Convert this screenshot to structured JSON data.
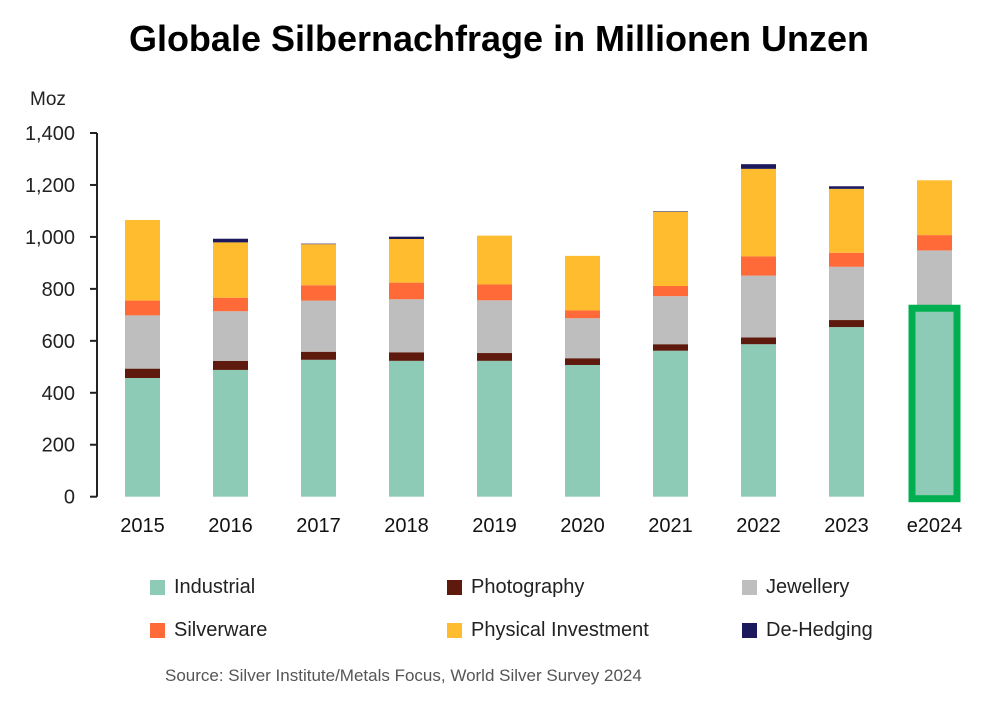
{
  "chart_data": {
    "type": "bar",
    "stacked": true,
    "title": "Globale Silbernachfrage in Millionen Unzen",
    "ylabel": "Moz",
    "ylim": [
      0,
      1400
    ],
    "yticks": [
      "0",
      "200",
      "400",
      "600",
      "800",
      "1,000",
      "1,200",
      "1,400"
    ],
    "ytick_values": [
      0,
      200,
      400,
      600,
      800,
      1000,
      1200,
      1400
    ],
    "grid": false,
    "legend_placement": "bottom",
    "categories": [
      "2015",
      "2016",
      "2017",
      "2018",
      "2019",
      "2020",
      "2021",
      "2022",
      "2023",
      "e2024"
    ],
    "series": [
      {
        "name": "Industrial",
        "color": "#8ECBB7",
        "values": [
          457,
          488,
          527,
          523,
          523,
          507,
          562,
          587,
          653,
          711
        ]
      },
      {
        "name": "Photography",
        "color": "#5E1A0C",
        "values": [
          36,
          35,
          31,
          33,
          30,
          26,
          25,
          26,
          27,
          26
        ]
      },
      {
        "name": "Jewellery",
        "color": "#BEBEBE",
        "values": [
          205,
          191,
          197,
          204,
          203,
          154,
          185,
          238,
          205,
          211
        ]
      },
      {
        "name": "Silverware",
        "color": "#FF6A38",
        "values": [
          57,
          52,
          59,
          64,
          61,
          30,
          39,
          74,
          54,
          59
        ]
      },
      {
        "name": "Physical Investment",
        "color": "#FFBC2E",
        "values": [
          310,
          213,
          158,
          168,
          188,
          210,
          286,
          337,
          246,
          211
        ]
      },
      {
        "name": "De-Hedging",
        "color": "#1C1A5C",
        "values": [
          0,
          14,
          2,
          9,
          0,
          0,
          2,
          18,
          10,
          0
        ]
      }
    ],
    "highlight": {
      "category": "e2024",
      "series": "Industrial",
      "color": "#00B050"
    },
    "source": "Source: Silver Institute/Metals Focus, World Silver Survey 2024"
  }
}
